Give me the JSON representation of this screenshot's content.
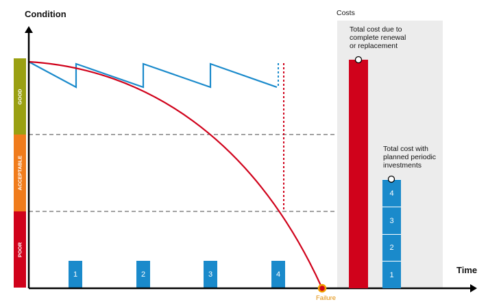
{
  "labels": {
    "condition": "Condition",
    "time": "Time",
    "costs": "Costs",
    "failure": "Failure",
    "total_renewal": [
      "Total cost due to",
      "complete renewal",
      "or replacement"
    ],
    "total_planned": [
      "Total cost with",
      "planned periodic",
      "investments"
    ]
  },
  "bands": [
    {
      "label": "GOOD",
      "color": "#9aa012"
    },
    {
      "label": "ACCEPTABLE",
      "color": "#f07c1c"
    },
    {
      "label": "POOR",
      "color": "#d0021b"
    }
  ],
  "investments": [
    "1",
    "2",
    "3",
    "4"
  ],
  "stack_segments": [
    "4",
    "3",
    "2",
    "1"
  ],
  "colors": {
    "blue": "#1a8acb",
    "red": "#d0021b",
    "panel": "#ececec",
    "failure_marker": "#f0a000"
  }
}
